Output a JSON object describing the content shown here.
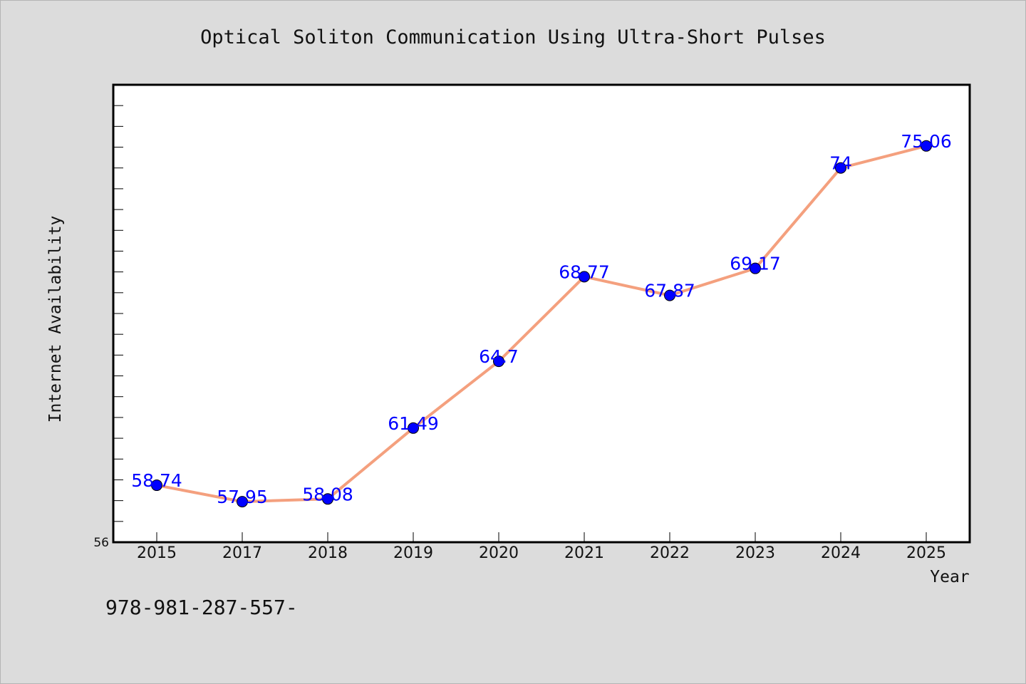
{
  "chart_data": {
    "type": "line",
    "title": "Optical Soliton Communication Using Ultra-Short Pulses",
    "xlabel": "Year",
    "ylabel": "Internet Availability",
    "categories": [
      "2015",
      "2017",
      "2018",
      "2019",
      "2020",
      "2021",
      "2022",
      "2023",
      "2024",
      "2025"
    ],
    "series": [
      {
        "values": [
          58.74,
          57.95,
          58.08,
          61.49,
          64.7,
          68.77,
          67.87,
          69.17,
          74,
          75.06
        ]
      }
    ],
    "data_labels": [
      "58.74",
      "57.95",
      "58.08",
      "61.49",
      "64.7",
      "68.77",
      "67.87",
      "69.17",
      "74",
      "75.06"
    ],
    "ylim": [
      56,
      78
    ],
    "y_tick_labels": [
      "56"
    ],
    "line_color": "#f4a07e",
    "marker_color": "#0000ff",
    "label_color": "#0000ff",
    "grid": false,
    "legend": "none"
  },
  "footer": {
    "text": "978-981-287-557-"
  },
  "colors": {
    "background": "#dcdcdc",
    "plot_area": "#ffffff",
    "frame": "#000000"
  }
}
